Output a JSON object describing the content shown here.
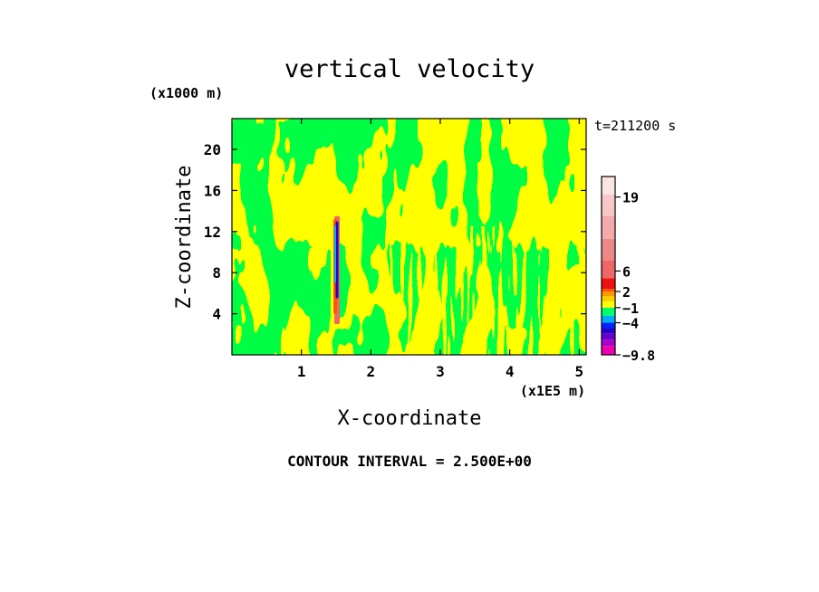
{
  "chart_data": {
    "type": "heatmap",
    "title": "vertical velocity",
    "xlabel": "X-coordinate",
    "ylabel": "Z-coordinate",
    "x_unit": "(x1E5 m)",
    "y_unit": "(x1000 m)",
    "time_label": "t=211200 s",
    "contour_interval_text": "CONTOUR INTERVAL = 2.500E+00",
    "xlim": [
      0,
      5.1
    ],
    "ylim": [
      0,
      23
    ],
    "x_ticks": [
      "1",
      "2",
      "3",
      "4",
      "5"
    ],
    "x_tick_values": [
      1,
      2,
      3,
      4,
      5
    ],
    "y_ticks": [
      "4",
      "8",
      "12",
      "16",
      "20"
    ],
    "y_tick_values": [
      4,
      8,
      12,
      16,
      20
    ],
    "colorbar": {
      "labels": [
        "19",
        "6",
        "2",
        "-1",
        "-4",
        "-9.8"
      ],
      "label_values": [
        19,
        6,
        2,
        -1,
        -4,
        -9.8
      ],
      "range": [
        -9.8,
        22
      ],
      "levels": [
        {
          "from": -9.8,
          "to": -7.5,
          "color": "#ee00aa"
        },
        {
          "from": -7.5,
          "to": -5.6,
          "color": "#aa00cc"
        },
        {
          "from": -5.6,
          "to": -4.0,
          "color": "#6600cc"
        },
        {
          "from": -4.0,
          "to": -3.0,
          "color": "#2200cc"
        },
        {
          "from": -3.0,
          "to": -2.0,
          "color": "#0022ff"
        },
        {
          "from": -2.0,
          "to": -1.0,
          "color": "#00aaff"
        },
        {
          "from": -1.0,
          "to": 0.0,
          "color": "#00ff66"
        },
        {
          "from": 0.0,
          "to": 1.0,
          "color": "#ffff00"
        },
        {
          "from": 1.0,
          "to": 2.0,
          "color": "#ffcc00"
        },
        {
          "from": 2.0,
          "to": 3.0,
          "color": "#ff9900"
        },
        {
          "from": 3.0,
          "to": 4.5,
          "color": "#ff5500"
        },
        {
          "from": 4.5,
          "to": 6.0,
          "color": "#ee1111"
        },
        {
          "from": 6.0,
          "to": 9.0,
          "color": "#ee6666"
        },
        {
          "from": 9.0,
          "to": 13.0,
          "color": "#ee8888"
        },
        {
          "from": 13.0,
          "to": 16.0,
          "color": "#f4aaaa"
        },
        {
          "from": 16.0,
          "to": 19.0,
          "color": "#f8c8c8"
        },
        {
          "from": 19.0,
          "to": 22.0,
          "color": "#fce4e4"
        }
      ]
    },
    "field_colors": {
      "near_zero_negative": "#00ff44",
      "near_zero_positive": "#ffff00"
    },
    "field_description": "Predominantly near-zero vertical velocity (green: slightly negative, yellow: slightly positive) with a narrow strong updraft/downdraft column near x=1.5 between z=3 and z=13."
  }
}
